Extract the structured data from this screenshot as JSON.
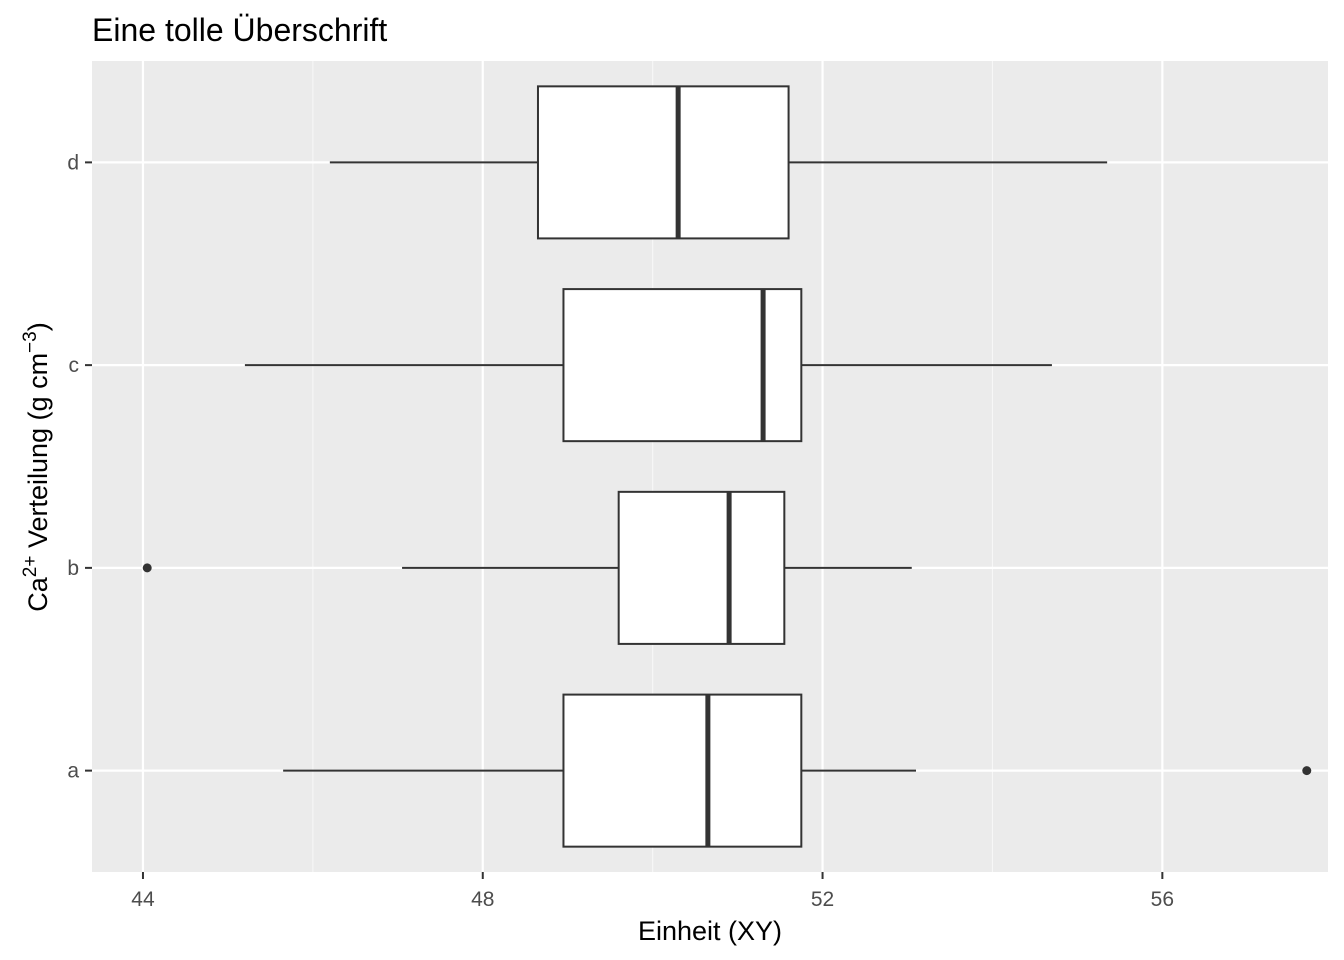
{
  "chart_data": {
    "type": "boxplot",
    "orientation": "horizontal",
    "title": "Eine tolle Überschrift",
    "xlabel": "Einheit (XY)",
    "ylabel": {
      "prefix": "Ca",
      "prefix_sup": "2+",
      "middle": " Verteilung (g cm",
      "unit_sup": "−3",
      "suffix": ")"
    },
    "xlim": [
      43.4,
      57.95
    ],
    "x_ticks": [
      44,
      48,
      52,
      56
    ],
    "x_tick_labels": [
      "44",
      "48",
      "52",
      "56"
    ],
    "x_minor_ticks": [
      46,
      50,
      54,
      58
    ],
    "categories": [
      "a",
      "b",
      "c",
      "d"
    ],
    "grid": true,
    "boxes": [
      {
        "category": "a",
        "whisker_low": 45.65,
        "q1": 48.95,
        "median": 50.65,
        "q3": 51.75,
        "whisker_high": 53.1,
        "outliers": [
          57.7
        ]
      },
      {
        "category": "b",
        "whisker_low": 47.05,
        "q1": 49.6,
        "median": 50.9,
        "q3": 51.55,
        "whisker_high": 53.05,
        "outliers": [
          44.05
        ]
      },
      {
        "category": "c",
        "whisker_low": 45.2,
        "q1": 48.95,
        "median": 51.3,
        "q3": 51.75,
        "whisker_high": 54.7,
        "outliers": []
      },
      {
        "category": "d",
        "whisker_low": 46.2,
        "q1": 48.65,
        "median": 50.3,
        "q3": 51.6,
        "whisker_high": 55.35,
        "outliers": []
      }
    ]
  },
  "colors": {
    "panel_background": "#ebebeb",
    "grid_major": "#ffffff",
    "grid_minor": "#f7f7f7",
    "box_fill": "#ffffff",
    "box_stroke": "#333333",
    "tick_label": "#4d4d4d",
    "title_text": "#000000"
  }
}
